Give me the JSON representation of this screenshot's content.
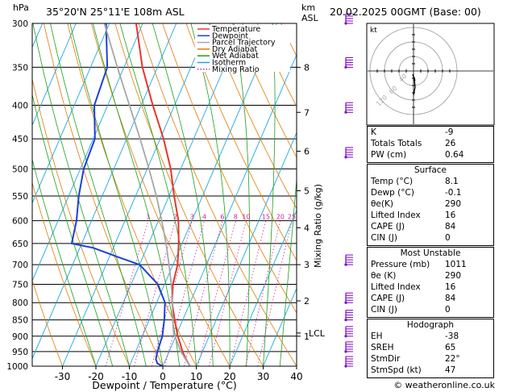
{
  "header": {
    "pressure_unit": "hPa",
    "location": "35°20'N  25°11'E  108m  ASL",
    "height_unit": "km",
    "height_unit2": "ASL",
    "datetime": "20.02.2025  00GMT  (Base: 00)"
  },
  "legend": [
    {
      "label": "Temperature",
      "color": "#e8352b"
    },
    {
      "label": "Dewpoint",
      "color": "#1e3fd8"
    },
    {
      "label": "Parcel Trajectory",
      "color": "#a6a6a6"
    },
    {
      "label": "Dry Adiabat",
      "color": "#e07b00"
    },
    {
      "label": "Wet Adiabat",
      "color": "#1aa01a"
    },
    {
      "label": "Isotherm",
      "color": "#1ea7e0"
    },
    {
      "label": "Mixing Ratio",
      "color": "#d21fa0"
    }
  ],
  "colors": {
    "temperature": "#e8352b",
    "dewpoint": "#1e3fd8",
    "parcel": "#a6a6a6",
    "dry": "#e07b00",
    "wet": "#1aa01a",
    "iso": "#1ea7e0",
    "mixing": "#d21fa0",
    "wind": "#8000c8"
  },
  "chart_data": {
    "type": "line",
    "title": "35°20'N  25°11'E  108m  ASL",
    "xlabel": "Dewpoint / Temperature (°C)",
    "ylabel": "hPa",
    "y2label": "Mixing Ratio (g/kg)",
    "xlim": [
      -35,
      40
    ],
    "ylim": [
      1000,
      300
    ],
    "x_ticks": [
      -30,
      -20,
      -10,
      0,
      10,
      20,
      30,
      40
    ],
    "p_ticks": [
      300,
      350,
      400,
      450,
      500,
      550,
      600,
      650,
      700,
      750,
      800,
      850,
      900,
      950,
      1000
    ],
    "km_ticks": [
      {
        "km": "8",
        "p": 350
      },
      {
        "km": "7",
        "p": 410
      },
      {
        "km": "6",
        "p": 470
      },
      {
        "km": "5",
        "p": 540
      },
      {
        "km": "4",
        "p": 615
      },
      {
        "km": "3",
        "p": 700
      },
      {
        "km": "2",
        "p": 795
      },
      {
        "km": "1",
        "p": 900
      }
    ],
    "lcl_label": "LCL",
    "lcl_p": 890,
    "mixing_ratio_labels": [
      "1",
      "2",
      "3",
      "4",
      "6",
      "8",
      "10",
      "15",
      "20",
      "25"
    ],
    "mixing_ratio_values": [
      1,
      2,
      3,
      4,
      6,
      8,
      10,
      15,
      20,
      25
    ],
    "series": [
      {
        "name": "Temperature",
        "points": [
          [
            1000,
            8.1
          ],
          [
            975,
            6.0
          ],
          [
            950,
            4.0
          ],
          [
            925,
            2.4
          ],
          [
            900,
            0.6
          ],
          [
            850,
            -2.4
          ],
          [
            800,
            -5.4
          ],
          [
            750,
            -7.5
          ],
          [
            700,
            -8.6
          ],
          [
            650,
            -11.0
          ],
          [
            600,
            -14.0
          ],
          [
            550,
            -18.5
          ],
          [
            500,
            -23.0
          ],
          [
            450,
            -29.0
          ],
          [
            400,
            -36.5
          ],
          [
            350,
            -44.5
          ],
          [
            300,
            -52.0
          ]
        ]
      },
      {
        "name": "Dewpoint",
        "points": [
          [
            1000,
            -0.1
          ],
          [
            990,
            -2.0
          ],
          [
            975,
            -3.0
          ],
          [
            950,
            -3.5
          ],
          [
            900,
            -4.0
          ],
          [
            850,
            -5.5
          ],
          [
            800,
            -7.5
          ],
          [
            750,
            -12.0
          ],
          [
            700,
            -20.0
          ],
          [
            680,
            -28.0
          ],
          [
            660,
            -36.0
          ],
          [
            650,
            -43.0
          ],
          [
            600,
            -44.5
          ],
          [
            550,
            -47.0
          ],
          [
            500,
            -49.0
          ],
          [
            450,
            -49.5
          ],
          [
            400,
            -54.0
          ],
          [
            350,
            -55.0
          ],
          [
            300,
            -61.0
          ]
        ]
      },
      {
        "name": "Parcel Trajectory",
        "points": [
          [
            1000,
            8.1
          ],
          [
            950,
            3.5
          ],
          [
            890,
            -1.0
          ],
          [
            850,
            -3.0
          ],
          [
            800,
            -5.3
          ],
          [
            750,
            -8.0
          ],
          [
            700,
            -11.2
          ],
          [
            650,
            -14.8
          ],
          [
            600,
            -19.0
          ],
          [
            550,
            -23.8
          ],
          [
            500,
            -29.5
          ],
          [
            450,
            -36.0
          ],
          [
            400,
            -43.5
          ],
          [
            350,
            -52.0
          ],
          [
            300,
            -61.5
          ]
        ]
      }
    ],
    "hodograph_label": "kt",
    "hodograph_ring_labels": [
      "40",
      "60",
      "120"
    ]
  },
  "indices": [
    {
      "k": "K",
      "v": "-9"
    },
    {
      "k": "Totals Totals",
      "v": "26"
    },
    {
      "k": "PW (cm)",
      "v": "0.64"
    }
  ],
  "surface": {
    "title": "Surface",
    "rows": [
      {
        "k": "Temp (°C)",
        "v": "8.1"
      },
      {
        "k": "Dewp (°C)",
        "v": "-0.1"
      },
      {
        "k": "θe(K)",
        "v": "290"
      },
      {
        "k": "Lifted Index",
        "v": "16"
      },
      {
        "k": "CAPE (J)",
        "v": "84"
      },
      {
        "k": "CIN (J)",
        "v": "0"
      }
    ]
  },
  "most_unstable": {
    "title": "Most Unstable",
    "rows": [
      {
        "k": "Pressure (mb)",
        "v": "1011"
      },
      {
        "k": "θe (K)",
        "v": "290"
      },
      {
        "k": "Lifted Index",
        "v": "16"
      },
      {
        "k": "CAPE (J)",
        "v": "84"
      },
      {
        "k": "CIN (J)",
        "v": "0"
      }
    ]
  },
  "hodograph": {
    "title": "Hodograph",
    "rows": [
      {
        "k": "EH",
        "v": "-38"
      },
      {
        "k": "SREH",
        "v": "65"
      },
      {
        "k": "StmDir",
        "v": "22°"
      },
      {
        "k": "StmSpd (kt)",
        "v": "47"
      }
    ]
  },
  "footer": {
    "copyright": "© weatheronline.co.uk"
  }
}
